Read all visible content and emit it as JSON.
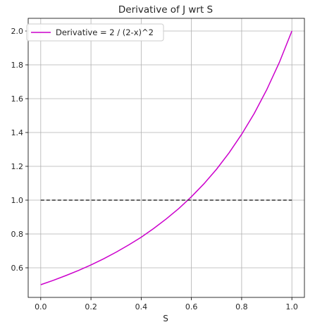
{
  "chart_data": {
    "type": "line",
    "title": "Derivative of J wrt S",
    "xlabel": "S",
    "ylabel": "",
    "xlim": [
      -0.05,
      1.05
    ],
    "ylim": [
      0.425,
      2.075
    ],
    "xticks": [
      0.0,
      0.2,
      0.4,
      0.6,
      0.8,
      1.0
    ],
    "xtick_labels": [
      "0.0",
      "0.2",
      "0.4",
      "0.6",
      "0.8",
      "1.0"
    ],
    "yticks": [
      0.6,
      0.8,
      1.0,
      1.2,
      1.4,
      1.6,
      1.8,
      2.0
    ],
    "ytick_labels": [
      "0.6",
      "0.8",
      "1.0",
      "1.2",
      "1.4",
      "1.6",
      "1.8",
      "2.0"
    ],
    "grid": true,
    "legend_position": "top-left",
    "series": [
      {
        "name": "Derivative = 2 / (2-x)^2",
        "color": "#cc00cc",
        "style": "solid",
        "x": [
          0.0,
          0.05,
          0.1,
          0.15,
          0.2,
          0.25,
          0.3,
          0.35,
          0.4,
          0.45,
          0.5,
          0.55,
          0.6,
          0.65,
          0.7,
          0.75,
          0.8,
          0.85,
          0.9,
          0.95,
          1.0
        ],
        "y": [
          0.5,
          0.526,
          0.554,
          0.584,
          0.617,
          0.653,
          0.692,
          0.735,
          0.781,
          0.833,
          0.889,
          0.951,
          1.02,
          1.097,
          1.183,
          1.28,
          1.389,
          1.512,
          1.653,
          1.814,
          2.0
        ]
      },
      {
        "color": "#333333",
        "style": "dashed",
        "x": [
          0.0,
          1.0
        ],
        "y": [
          1.0,
          1.0
        ]
      }
    ]
  }
}
